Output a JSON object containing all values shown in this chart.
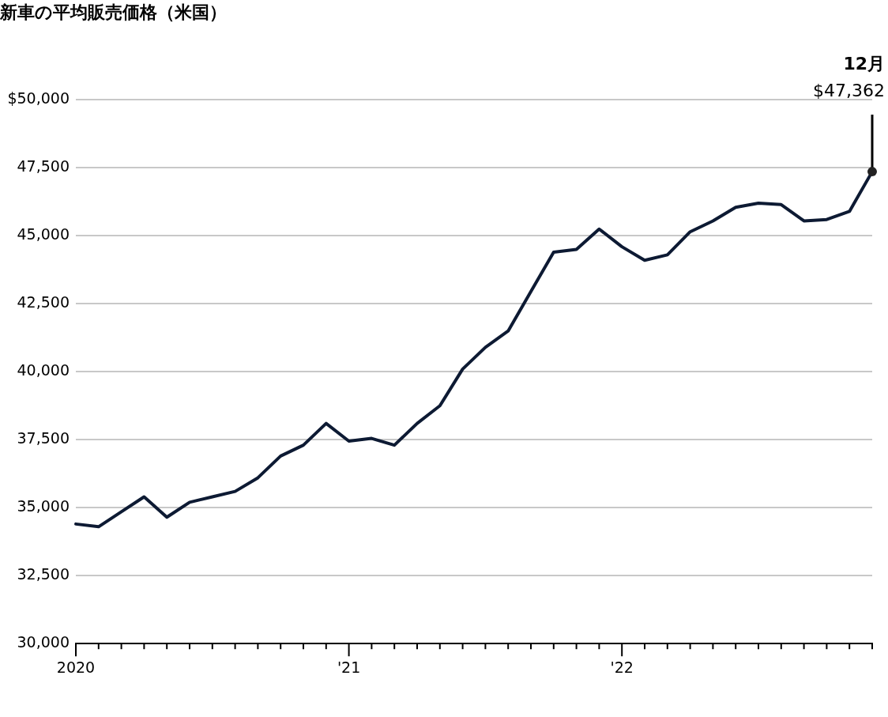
{
  "chart_data": {
    "type": "line",
    "title": "新車の平均販売価格（米国）",
    "categories": [
      "2020",
      null,
      null,
      null,
      null,
      null,
      null,
      null,
      null,
      null,
      null,
      null,
      "'21",
      null,
      null,
      null,
      null,
      null,
      null,
      null,
      null,
      null,
      null,
      null,
      "'22",
      null,
      null,
      null,
      null,
      null,
      null,
      null,
      null,
      null,
      null,
      null
    ],
    "series": [
      {
        "color": "#0d1a33",
        "values": [
          34400,
          34300,
          34850,
          35400,
          34650,
          35200,
          35400,
          35600,
          36100,
          36900,
          37300,
          38100,
          37450,
          37550,
          37300,
          38100,
          38750,
          40100,
          40900,
          41500,
          42950,
          44400,
          44500,
          45250,
          44600,
          44100,
          44300,
          45150,
          45550,
          46050,
          46200,
          46150,
          45550,
          45600,
          45900,
          47362
        ],
        "value_labels": [
          null,
          null,
          null,
          null,
          null,
          null,
          null,
          null,
          null,
          null,
          null,
          null,
          null,
          null,
          null,
          null,
          null,
          null,
          null,
          null,
          null,
          null,
          null,
          null,
          null,
          null,
          null,
          null,
          null,
          null,
          null,
          null,
          null,
          null,
          null,
          "$47,362"
        ]
      }
    ],
    "ylim": [
      30000,
      50000
    ],
    "yticks": [
      {
        "value": 30000,
        "label": "30,000"
      },
      {
        "value": 32500,
        "label": "32,500"
      },
      {
        "value": 35000,
        "label": "35,000"
      },
      {
        "value": 37500,
        "label": "37,500"
      },
      {
        "value": 40000,
        "label": "40,000"
      },
      {
        "value": 42500,
        "label": "42,500"
      },
      {
        "value": 45000,
        "label": "45,000"
      },
      {
        "value": 47500,
        "label": "47,500"
      },
      {
        "value": 50000,
        "label": "$50,000"
      }
    ],
    "grid": "y",
    "legend": false,
    "line_style": "solid",
    "annotations": [
      "12月"
    ]
  }
}
